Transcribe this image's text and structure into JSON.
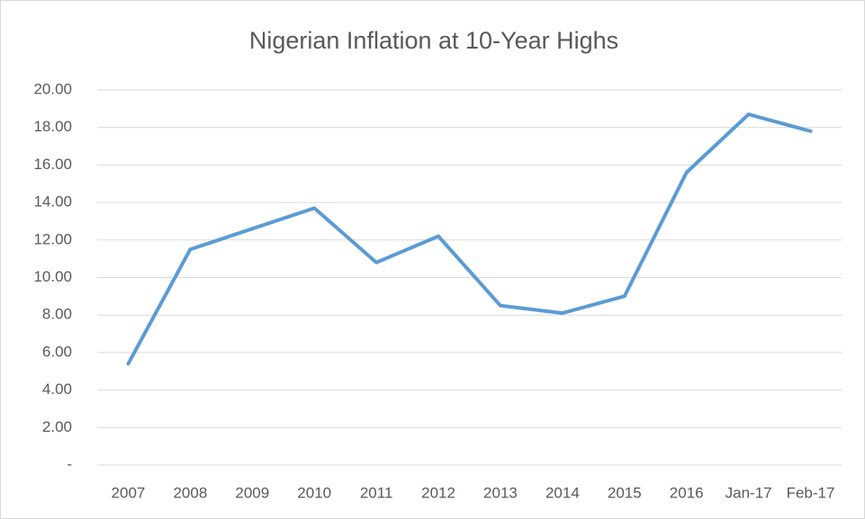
{
  "chart_data": {
    "type": "line",
    "title": "Nigerian Inflation at 10-Year Highs",
    "categories": [
      "2007",
      "2008",
      "2009",
      "2010",
      "2011",
      "2012",
      "2013",
      "2014",
      "2015",
      "2016",
      "Jan-17",
      "Feb-17"
    ],
    "values": [
      5.4,
      11.5,
      12.6,
      13.7,
      10.8,
      12.2,
      8.5,
      8.1,
      9.0,
      15.6,
      18.7,
      17.8
    ],
    "color": "#5b9bd5",
    "ylim": [
      0,
      20
    ],
    "yticks": [
      {
        "value": 0,
        "label": "-"
      },
      {
        "value": 2,
        "label": "2.00"
      },
      {
        "value": 4,
        "label": "4.00"
      },
      {
        "value": 6,
        "label": "6.00"
      },
      {
        "value": 8,
        "label": "8.00"
      },
      {
        "value": 10,
        "label": "10.00"
      },
      {
        "value": 12,
        "label": "12.00"
      },
      {
        "value": 14,
        "label": "14.00"
      },
      {
        "value": 16,
        "label": "16.00"
      },
      {
        "value": 18,
        "label": "18.00"
      },
      {
        "value": 20,
        "label": "20.00"
      }
    ],
    "grid": true
  }
}
